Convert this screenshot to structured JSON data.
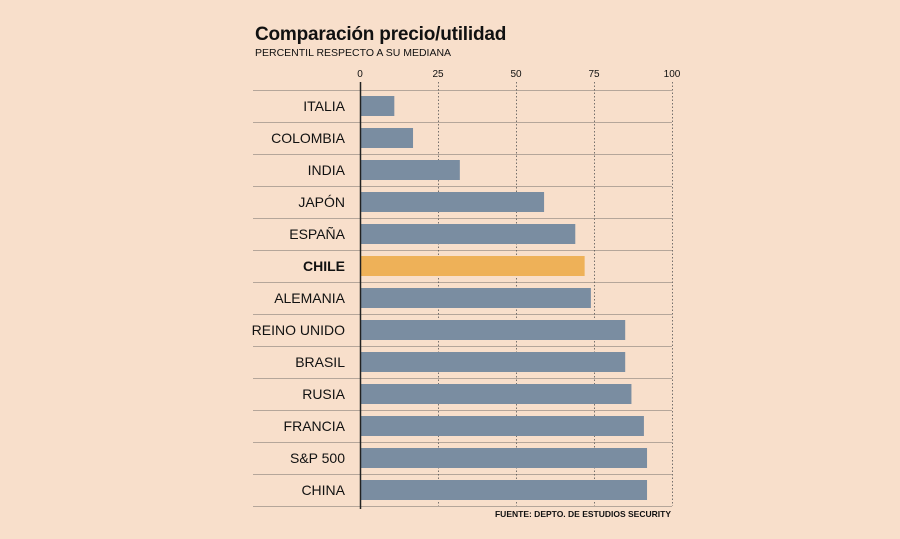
{
  "title": "Comparación precio/utilidad",
  "subtitle": "PERCENTIL RESPECTO A SU MEDIANA",
  "source": "FUENTE: DEPTO. DE ESTUDIOS SECURITY",
  "colors": {
    "bar": "#7a8da1",
    "highlight": "#eeb158",
    "grid": "#555555",
    "row_line": "#b5a69a",
    "axis": "#222222"
  },
  "chart_data": {
    "type": "bar",
    "orientation": "horizontal",
    "title": "Comparación precio/utilidad",
    "subtitle": "PERCENTIL RESPECTO A SU MEDIANA",
    "xlabel": "",
    "ylabel": "",
    "xlim": [
      0,
      100
    ],
    "ticks": [
      0,
      25,
      50,
      75,
      100
    ],
    "tick_labels": [
      "0",
      "25",
      "50",
      "75",
      "100"
    ],
    "categories": [
      "ITALIA",
      "COLOMBIA",
      "INDIA",
      "JAPÓN",
      "ESPAÑA",
      "CHILE",
      "ALEMANIA",
      "REINO UNIDO",
      "BRASIL",
      "RUSIA",
      "FRANCIA",
      "S&P 500",
      "CHINA"
    ],
    "values": [
      11,
      17,
      32,
      59,
      69,
      72,
      74,
      85,
      85,
      87,
      91,
      92,
      92
    ],
    "highlight": "CHILE",
    "axis_position": "top",
    "grid": true
  }
}
